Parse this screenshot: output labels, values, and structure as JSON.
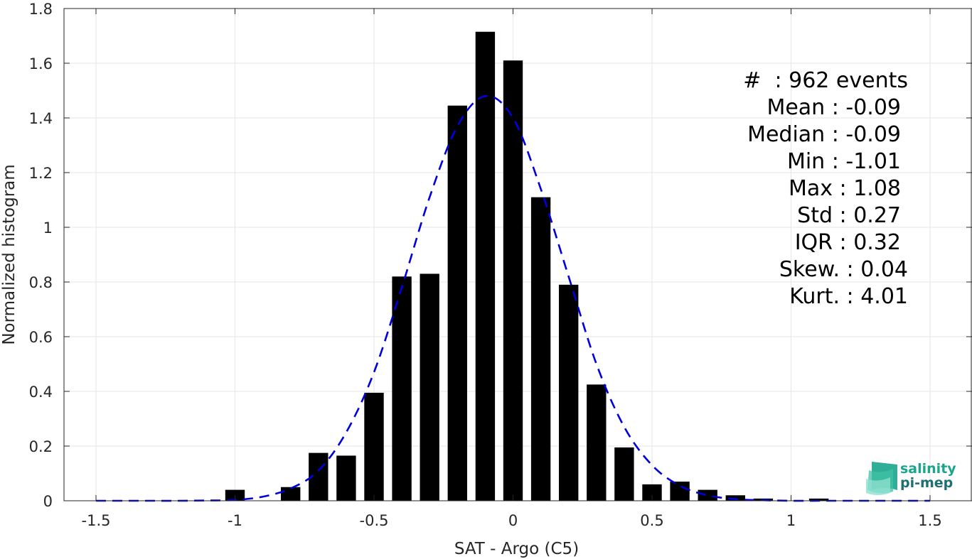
{
  "chart_data": {
    "type": "bar",
    "xlabel": "SAT - Argo (C5)",
    "ylabel": "Normalized histogram",
    "xlim": [
      -1.5,
      1.5
    ],
    "ylim": [
      0,
      1.8
    ],
    "grid": true,
    "x_ticks": [
      "-1.5",
      "-1",
      "-0.5",
      "0",
      "0.5",
      "1",
      "1.5"
    ],
    "y_ticks": [
      "0",
      "0.2",
      "0.4",
      "0.6",
      "0.8",
      "1",
      "1.2",
      "1.4",
      "1.6",
      "1.8"
    ],
    "bar_color": "#000000",
    "bar_width": 0.07,
    "bars": [
      {
        "x": -1.0,
        "value": 0.04
      },
      {
        "x": -0.8,
        "value": 0.05
      },
      {
        "x": -0.7,
        "value": 0.175
      },
      {
        "x": -0.6,
        "value": 0.165
      },
      {
        "x": -0.5,
        "value": 0.395
      },
      {
        "x": -0.4,
        "value": 0.82
      },
      {
        "x": -0.3,
        "value": 0.83
      },
      {
        "x": -0.2,
        "value": 1.445
      },
      {
        "x": -0.1,
        "value": 1.715
      },
      {
        "x": 0.0,
        "value": 1.61
      },
      {
        "x": 0.1,
        "value": 1.11
      },
      {
        "x": 0.2,
        "value": 0.79
      },
      {
        "x": 0.3,
        "value": 0.425
      },
      {
        "x": 0.4,
        "value": 0.195
      },
      {
        "x": 0.5,
        "value": 0.06
      },
      {
        "x": 0.6,
        "value": 0.07
      },
      {
        "x": 0.7,
        "value": 0.04
      },
      {
        "x": 0.8,
        "value": 0.02
      },
      {
        "x": 0.9,
        "value": 0.008
      },
      {
        "x": 1.1,
        "value": 0.008
      }
    ],
    "fit_curve": {
      "style": "dashed",
      "color": "#0000dd",
      "x": [
        -1.5,
        -1.4,
        -1.3,
        -1.2,
        -1.1,
        -1.0,
        -0.9,
        -0.8,
        -0.7,
        -0.6,
        -0.5,
        -0.4,
        -0.3,
        -0.2,
        -0.1,
        0.0,
        0.1,
        0.2,
        0.3,
        0.4,
        0.5,
        0.6,
        0.7,
        0.8,
        0.9,
        1.0,
        1.1,
        1.2,
        1.3,
        1.4,
        1.5
      ],
      "y": [
        0.0,
        0.0,
        0.0,
        0.0,
        0.001,
        0.003,
        0.015,
        0.045,
        0.11,
        0.25,
        0.47,
        0.78,
        1.11,
        1.37,
        1.48,
        1.4,
        1.14,
        0.82,
        0.5,
        0.27,
        0.13,
        0.055,
        0.02,
        0.006,
        0.002,
        0.0,
        0.0,
        0.0,
        0.0,
        0.0,
        0.0
      ]
    },
    "stats": [
      "#  : 962 events",
      "Mean : -0.09",
      "Median : -0.09",
      "Min : -1.01",
      "Max : 1.08",
      "Std : 0.27",
      "IQR : 0.32",
      "Skew. : 0.04",
      "Kurt. : 4.01"
    ]
  },
  "logo": {
    "line1": "salinity",
    "line2": "pi-mep",
    "color1": "#1aa58c",
    "color2": "#1f6f74"
  }
}
